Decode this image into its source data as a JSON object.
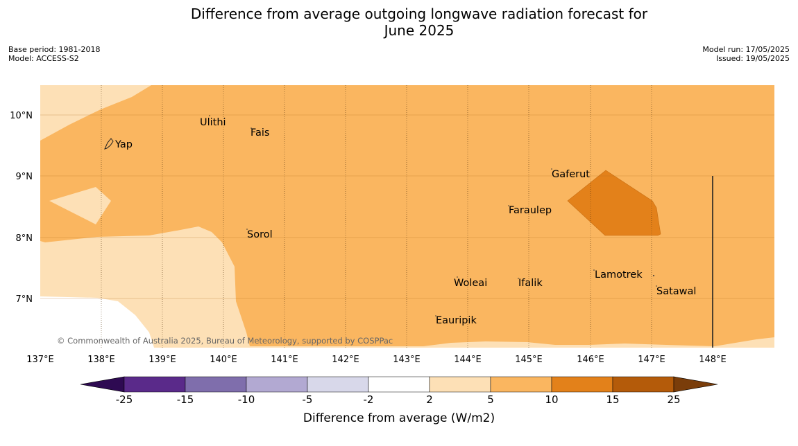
{
  "title_line1": "Difference from average outgoing longwave radiation forecast for",
  "title_line2": "June 2025",
  "meta": {
    "base_period": "Base period: 1981-2018",
    "model": "Model: ACCESS-S2",
    "model_run": "Model run: 17/05/2025",
    "issued": "Issued: 19/05/2025"
  },
  "map": {
    "lat_labels": [
      "10°N",
      "9°N",
      "8°N",
      "7°N"
    ],
    "lon_labels": [
      "137°E",
      "138°E",
      "139°E",
      "140°E",
      "141°E",
      "142°E",
      "143°E",
      "144°E",
      "145°E",
      "146°E",
      "147°E",
      "148°E"
    ],
    "places": [
      "Yap",
      "Ulithi",
      "Fais",
      "Gaferut",
      "Faraulep",
      "Sorol",
      "Lamotrek",
      "Woleai",
      "Ifalik",
      "Satawal",
      "Eauripik"
    ],
    "copyright": "© Commonwealth of Australia 2025, Bureau of Meteorology, supported by COSPPac"
  },
  "colorbar": {
    "title": "Difference from average (W/m2)",
    "tick_labels": [
      "-25",
      "-15",
      "-10",
      "-5",
      "-2",
      "2",
      "5",
      "10",
      "15",
      "25"
    ],
    "colors": [
      "#5a2a8a",
      "#7f6eac",
      "#b2a9d2",
      "#d8d8ea",
      "#ffffff",
      "#fde0b6",
      "#fab660",
      "#e3811a",
      "#b45b0a"
    ],
    "under_color": "#2e0a52",
    "over_color": "#7a3d0a"
  }
}
